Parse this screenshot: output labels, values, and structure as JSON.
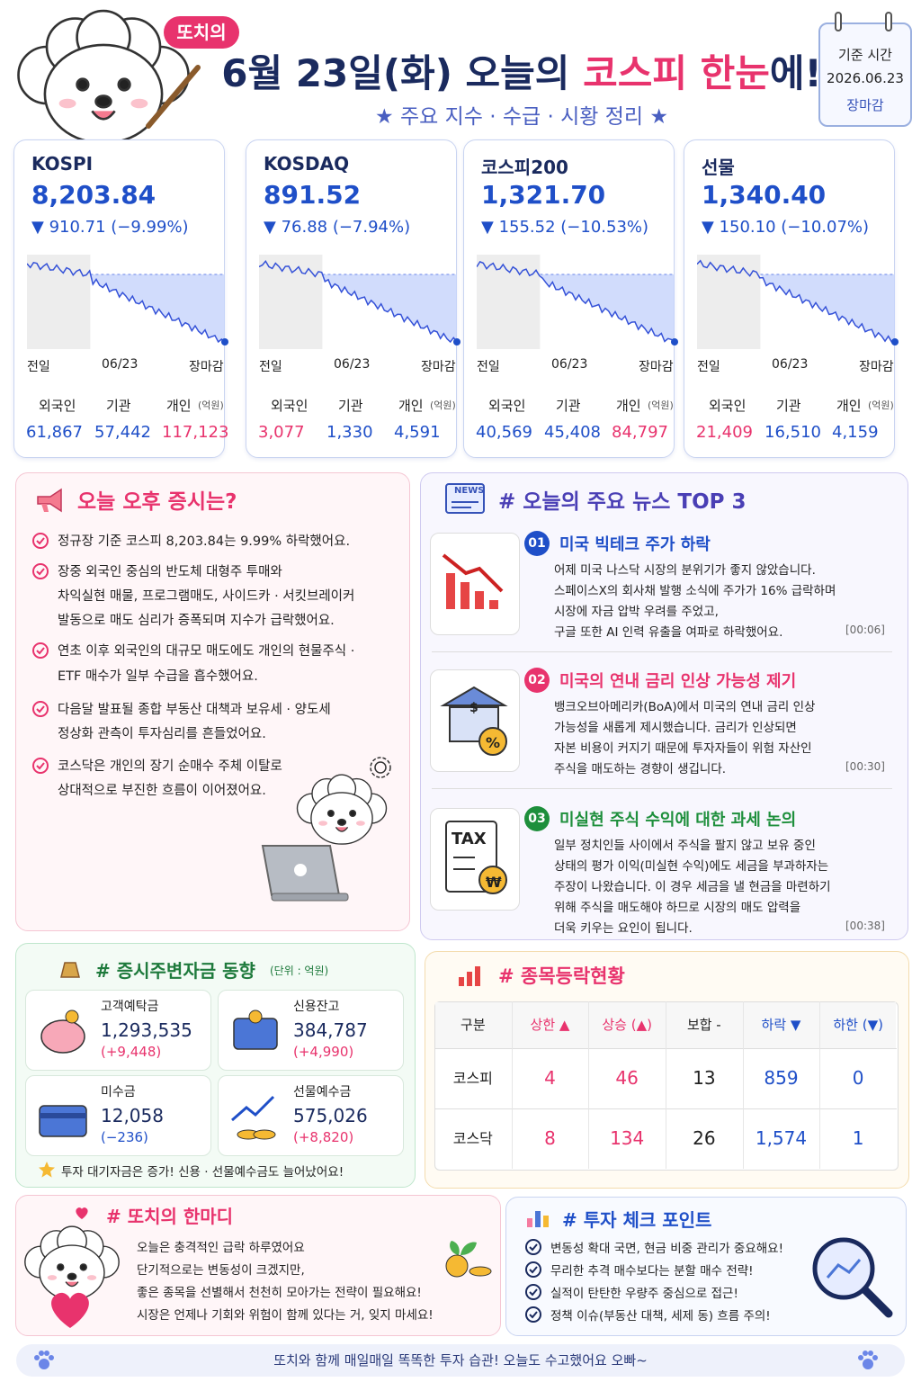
{
  "header": {
    "badge": "또치의",
    "title_prefix": "6월 23일(화) 오늘의 ",
    "title_highlight": "코스피 한눈",
    "title_suffix": "에!",
    "subtitle": "★ 주요 지수 · 수급 · 시황 정리 ★"
  },
  "base_time": {
    "label": "기준 시간",
    "date": "2026.06.23",
    "status": "장마감"
  },
  "indices": [
    {
      "name": "KOSPI",
      "value": "8,203.84",
      "change": "▼ 910.71 (−9.99%)",
      "axis": [
        "전일",
        "06/23",
        "장마감"
      ],
      "flow_labels": [
        "외국인",
        "기관",
        "개인"
      ],
      "flow_unit": "(억원)",
      "flows": [
        {
          "value": "61,867",
          "color": "#1f4fc8"
        },
        {
          "value": "57,442",
          "color": "#1f4fc8"
        },
        {
          "value": "117,123",
          "color": "#e8336d"
        }
      ]
    },
    {
      "name": "KOSDAQ",
      "value": "891.52",
      "change": "▼ 76.88 (−7.94%)",
      "axis": [
        "전일",
        "06/23",
        "장마감"
      ],
      "flow_labels": [
        "외국인",
        "기관",
        "개인"
      ],
      "flow_unit": "(억원)",
      "flows": [
        {
          "value": "3,077",
          "color": "#e8336d"
        },
        {
          "value": "1,330",
          "color": "#1f4fc8"
        },
        {
          "value": "4,591",
          "color": "#1f4fc8"
        }
      ]
    },
    {
      "name": "코스피200",
      "value": "1,321.70",
      "change": "▼ 155.52 (−10.53%)",
      "axis": [
        "전일",
        "06/23",
        "장마감"
      ],
      "flow_labels": [
        "외국인",
        "기관",
        "개인"
      ],
      "flow_unit": "(억원)",
      "flows": [
        {
          "value": "40,569",
          "color": "#1f4fc8"
        },
        {
          "value": "45,408",
          "color": "#1f4fc8"
        },
        {
          "value": "84,797",
          "color": "#e8336d"
        }
      ]
    },
    {
      "name": "선물",
      "value": "1,340.40",
      "change": "▼ 150.10 (−10.07%)",
      "axis": [
        "전일",
        "06/23",
        "장마감"
      ],
      "flow_labels": [
        "외국인",
        "기관",
        "개인"
      ],
      "flow_unit": "(억원)",
      "flows": [
        {
          "value": "21,409",
          "color": "#e8336d"
        },
        {
          "value": "16,510",
          "color": "#1f4fc8"
        },
        {
          "value": "4,159",
          "color": "#1f4fc8"
        }
      ]
    }
  ],
  "market": {
    "title": "오늘 오후 증시는?",
    "items": [
      [
        "정규장 기준 코스피 8,203.84는 9.99% 하락했어요."
      ],
      [
        "장중 외국인 중심의 반도체 대형주 투매와",
        "차익실현 매물, 프로그램매도, 사이드카 · 서킷브레이커",
        "발동으로 매도 심리가 증폭되며 지수가 급락했어요."
      ],
      [
        "연초 이후 외국인의 대규모 매도에도 개인의 현물주식 ·",
        "ETF 매수가 일부 수급을 흡수했어요."
      ],
      [
        "다음달 발표될 종합 부동산 대책과 보유세 · 양도세",
        "정상화 관측이 투자심리를 흔들었어요."
      ],
      [
        "코스닥은 개인의 장기 순매수 주체 이탈로",
        "상대적으로 부진한 흐름이 이어졌어요."
      ]
    ]
  },
  "news": {
    "title": "# 오늘의 주요 뉴스 TOP 3",
    "icon_text": "NEWS",
    "items": [
      {
        "number": "01",
        "headline": "미국 빅테크 주가 하락",
        "color": "#1f4fc8",
        "icon_labels": [],
        "body": [
          "어제 미국 나스닥 시장의 분위기가 좋지 않았습니다.",
          "스페이스X의 회사채 발행 소식에 주가가 16% 급락하며",
          "시장에 자금 압박 우려를 주었고,",
          "구글 또한 AI 인력 유출을 여파로 하락했어요."
        ],
        "time": "[00:06]"
      },
      {
        "number": "02",
        "headline": "미국의 연내 금리 인상 가능성 제기",
        "color": "#e8336d",
        "icon_labels": [
          "$",
          "%"
        ],
        "body": [
          "뱅크오브아메리카(BoA)에서 미국의 연내 금리 인상",
          "가능성을 새롭게 제시했습니다. 금리가 인상되면",
          "자본 비용이 커지기 때문에 투자자들이 위험 자산인",
          "주식을 매도하는 경향이 생깁니다."
        ],
        "time": "[00:30]"
      },
      {
        "number": "03",
        "headline": "미실현 주식 수익에 대한 과세 논의",
        "color": "#1e8f3c",
        "icon_labels": [
          "TAX",
          "₩"
        ],
        "body": [
          "일부 정치인들 사이에서 주식을 팔지 않고 보유 중인",
          "상태의 평가 이익(미실현 수익)에도 세금을 부과하자는",
          "주장이 나왔습니다. 이 경우 세금을 낼 현금을 마련하기",
          "위해 주식을 매도해야 하므로 시장의 매도 압력을",
          "더욱 키우는 요인이 됩니다."
        ],
        "time": "[00:38]"
      }
    ]
  },
  "funds": {
    "title": "# 증시주변자금 동향",
    "unit": "(단위 : 억원)",
    "items": [
      {
        "name": "고객예탁금",
        "value": "1,293,535",
        "change": "(+9,448)",
        "color": "#e8336d"
      },
      {
        "name": "신용잔고",
        "value": "384,787",
        "change": "(+4,990)",
        "color": "#e8336d"
      },
      {
        "name": "미수금",
        "value": "12,058",
        "change": "(−236)",
        "color": "#1f4fc8"
      },
      {
        "name": "선물예수금",
        "value": "575,026",
        "change": "(+8,820)",
        "color": "#e8336d"
      }
    ],
    "footer": "투자 대기자금은 증가! 신용 · 선물예수금도 늘어났어요!"
  },
  "breadth": {
    "title": "# 종목등락현황",
    "headers": [
      "구분",
      "상한 ▲",
      "상승 (▲)",
      "보합 -",
      "하락 ▼",
      "하한 (▼)"
    ],
    "col_colors": [
      "#222",
      "#e8336d",
      "#e8336d",
      "#222",
      "#1f4fc8",
      "#1f4fc8"
    ],
    "rows": [
      [
        "코스피",
        "4",
        "46",
        "13",
        "859",
        "0"
      ],
      [
        "코스닥",
        "8",
        "134",
        "26",
        "1,574",
        "1"
      ]
    ]
  },
  "comment": {
    "title": "# 또치의 한마디",
    "lines": [
      "오늘은 충격적인 급락 하루였어요",
      "단기적으로는 변동성이 크겠지만,",
      "좋은 종목을 선별해서 천천히 모아가는 전략이 필요해요!",
      "시장은 언제나 기회와 위험이 함께 있다는 거, 잊지 마세요!"
    ]
  },
  "checkpoints": {
    "title": "# 투자 체크 포인트",
    "items": [
      "변동성 확대 국면, 현금 비중 관리가 중요해요!",
      "무리한 추격 매수보다는 분할 매수 전략!",
      "실적이 탄탄한 우량주 중심으로 접근!",
      "정책 이슈(부동산 대책, 세제 동) 흐름 주의!"
    ]
  },
  "footer": "또치와 함께 매일매일 똑똑한 투자 습관! 오늘도 수고했어요 오빠~"
}
